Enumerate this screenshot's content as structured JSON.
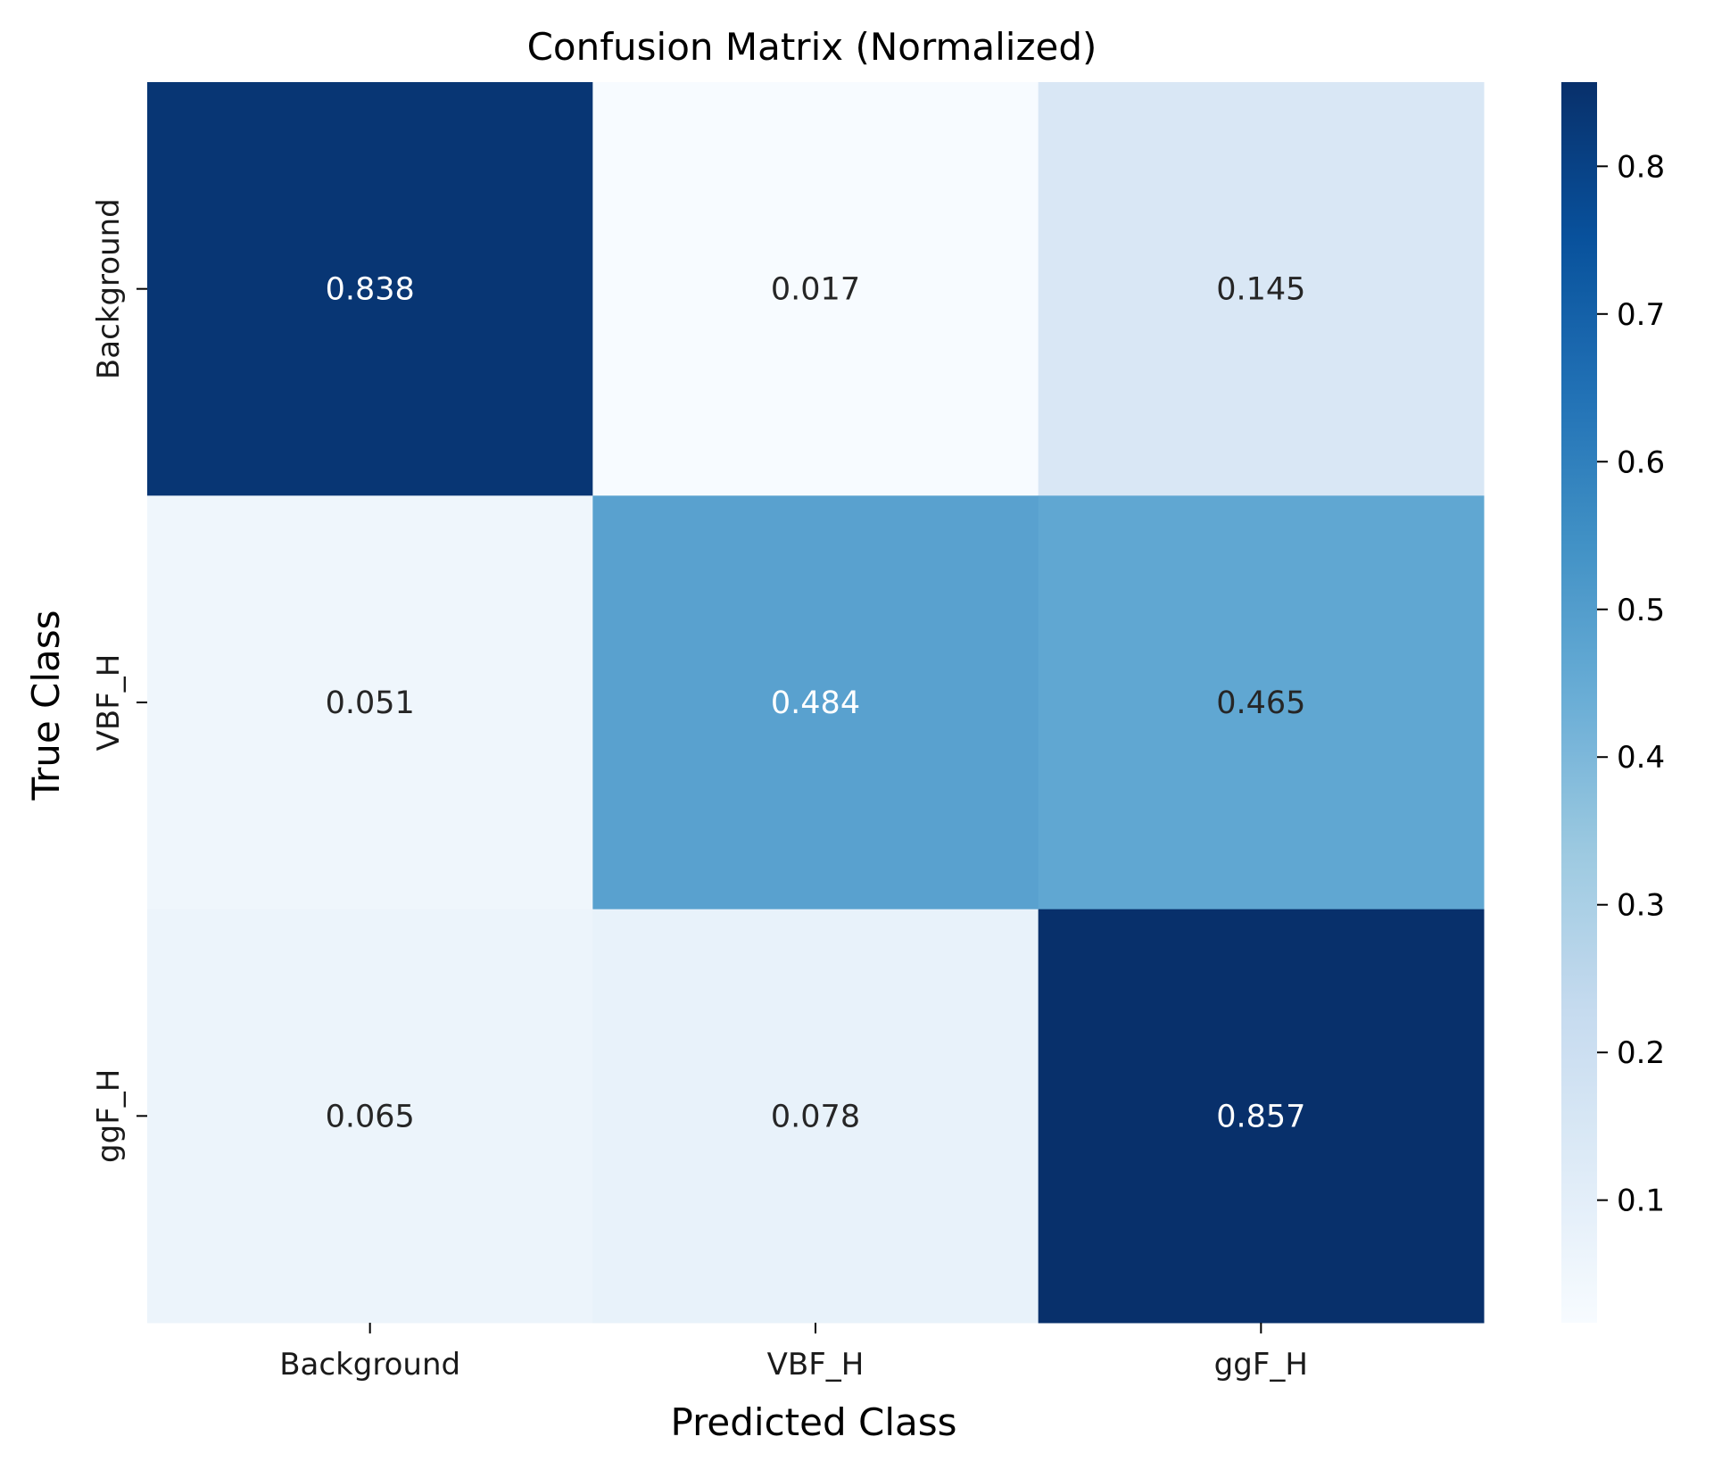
{
  "chart_data": {
    "type": "heatmap",
    "title": "Confusion Matrix (Normalized)",
    "xlabel": "Predicted Class",
    "ylabel": "True Class",
    "x_categories": [
      "Background",
      "VBF_H",
      "ggF_H"
    ],
    "y_categories": [
      "Background",
      "VBF_H",
      "ggF_H"
    ],
    "values": [
      [
        0.838,
        0.017,
        0.145
      ],
      [
        0.051,
        0.484,
        0.465
      ],
      [
        0.065,
        0.078,
        0.857
      ]
    ],
    "value_labels": [
      [
        "0.838",
        "0.017",
        "0.145"
      ],
      [
        "0.051",
        "0.484",
        "0.465"
      ],
      [
        "0.065",
        "0.078",
        "0.857"
      ]
    ],
    "colormap": "Blues",
    "color_range": [
      0.017,
      0.857
    ],
    "colorbar_ticks": [
      0.1,
      0.2,
      0.3,
      0.4,
      0.5,
      0.6,
      0.7,
      0.8
    ],
    "colorbar_tick_labels": [
      "0.1",
      "0.2",
      "0.3",
      "0.4",
      "0.5",
      "0.6",
      "0.7",
      "0.8"
    ],
    "colors": {
      "cmap_stops": [
        "#f7fbff",
        "#deebf7",
        "#c6dbef",
        "#9ecae1",
        "#6baed6",
        "#4292c6",
        "#2171b5",
        "#08519c",
        "#08306b"
      ],
      "light_text": "#ffffff",
      "dark_text": "#262626"
    }
  }
}
